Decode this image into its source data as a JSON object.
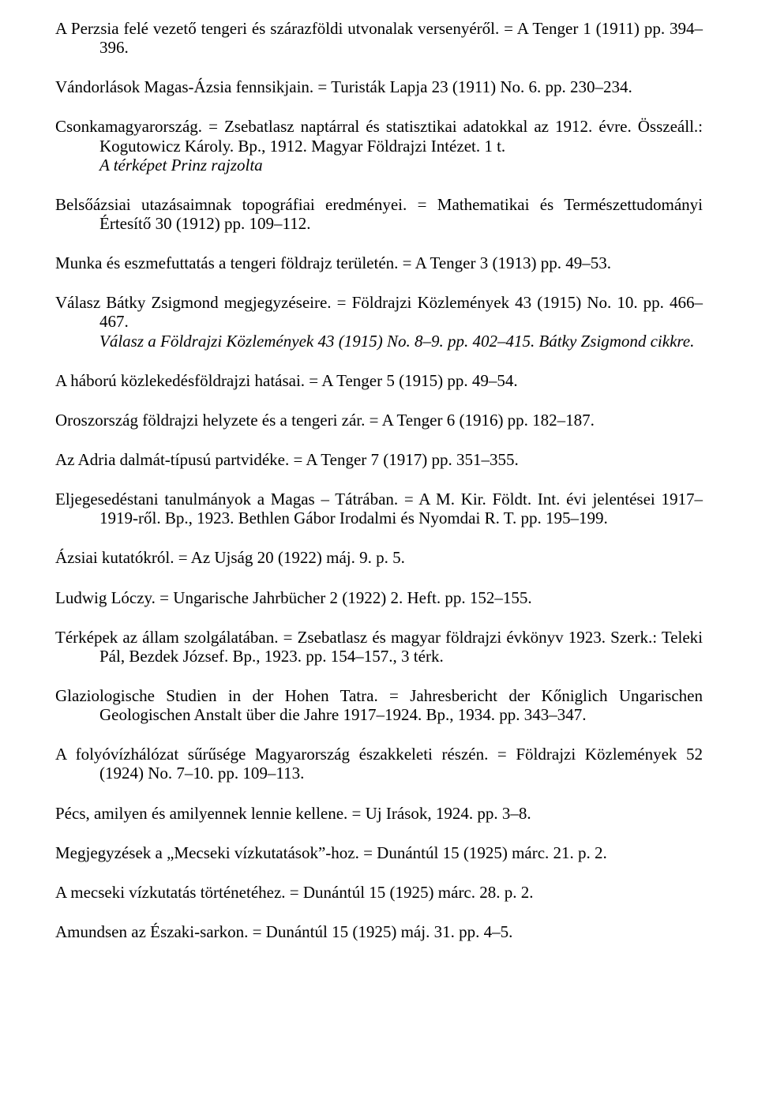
{
  "entries": [
    {
      "lines": [
        {
          "text": "A Perzsia felé vezető tengeri és szárazföldi utvonalak versenyéről. = A Tenger 1 (1911) pp. 394–396.",
          "hang": true
        }
      ]
    },
    {
      "lines": [
        {
          "text": "Vándorlások Magas-Ázsia fennsikjain. = Turisták Lapja 23 (1911) No. 6. pp. 230–234."
        }
      ]
    },
    {
      "lines": [
        {
          "text": "Csonkamagyarország. = Zsebatlasz naptárral és statisztikai adatokkal az 1912. évre. Összeáll.: Kogutowicz Károly. Bp., 1912. Magyar Földrajzi Intézet. 1 t.",
          "hang": true
        },
        {
          "text": "A térképet Prinz rajzolta",
          "note": true
        }
      ]
    },
    {
      "lines": [
        {
          "text": "Belsőázsiai utazásaimnak topográfiai eredményei. = Mathematikai és Természettudományi Értesítő 30 (1912) pp. 109–112.",
          "hang": true
        }
      ]
    },
    {
      "lines": [
        {
          "text": "Munka és eszmefuttatás a tengeri földrajz területén. = A Tenger 3 (1913) pp. 49–53."
        }
      ]
    },
    {
      "lines": [
        {
          "text": "Válasz Bátky Zsigmond megjegyzéseire. = Földrajzi Közlemények 43 (1915) No. 10. pp. 466–467.",
          "hang": true
        },
        {
          "text": "Válasz a Földrajzi Közlemények 43 (1915) No. 8–9. pp. 402–415. Bátky Zsigmond cikkre.",
          "note": true
        }
      ]
    },
    {
      "lines": [
        {
          "text": "A háború közlekedésföldrajzi hatásai. = A Tenger 5 (1915) pp. 49–54."
        }
      ]
    },
    {
      "lines": [
        {
          "text": "Oroszország földrajzi helyzete és a tengeri zár. = A Tenger 6 (1916) pp. 182–187."
        }
      ]
    },
    {
      "lines": [
        {
          "text": "Az Adria dalmát-típusú partvidéke. = A Tenger 7 (1917) pp. 351–355."
        }
      ]
    },
    {
      "lines": [
        {
          "text": "Eljegesedéstani tanulmányok a Magas – Tátrában. = A M. Kir. Földt. Int. évi jelentései 1917–1919-ről. Bp., 1923. Bethlen Gábor Irodalmi és Nyomdai R. T. pp. 195–199.",
          "hang": true
        }
      ]
    },
    {
      "lines": [
        {
          "text": "Ázsiai kutatókról. = Az Ujság 20 (1922) máj. 9. p. 5."
        }
      ]
    },
    {
      "lines": [
        {
          "text": "Ludwig Lóczy. = Ungarische Jahrbücher 2 (1922) 2. Heft. pp. 152–155."
        }
      ]
    },
    {
      "lines": [
        {
          "text": "Térképek az állam szolgálatában. = Zsebatlasz és magyar földrajzi évkönyv 1923. Szerk.: Teleki Pál, Bezdek József. Bp., 1923. pp. 154–157., 3 térk.",
          "hang": true
        }
      ]
    },
    {
      "lines": [
        {
          "text": "Glaziologische Studien in der Hohen Tatra. = Jahresbericht der Kőniglich Ungarischen Geologischen Anstalt über die Jahre 1917–1924. Bp., 1934. pp. 343–347.",
          "hang": true
        }
      ]
    },
    {
      "lines": [
        {
          "text": "A folyóvízhálózat sűrűsége Magyarország északkeleti részén. = Földrajzi Közlemények 52 (1924) No. 7–10. pp. 109–113.",
          "hang": true
        }
      ]
    },
    {
      "lines": [
        {
          "text": "Pécs, amilyen és amilyennek lennie kellene. = Uj Irások, 1924. pp. 3–8."
        }
      ]
    },
    {
      "lines": [
        {
          "text": "Megjegyzések a „Mecseki vízkutatások”-hoz. = Dunántúl 15 (1925) márc. 21. p. 2."
        }
      ]
    },
    {
      "lines": [
        {
          "text": "A mecseki vízkutatás történetéhez. = Dunántúl 15 (1925) márc. 28. p. 2."
        }
      ]
    },
    {
      "lines": [
        {
          "text": "Amundsen az Északi-sarkon. = Dunántúl 15 (1925) máj. 31. pp. 4–5."
        }
      ]
    }
  ]
}
